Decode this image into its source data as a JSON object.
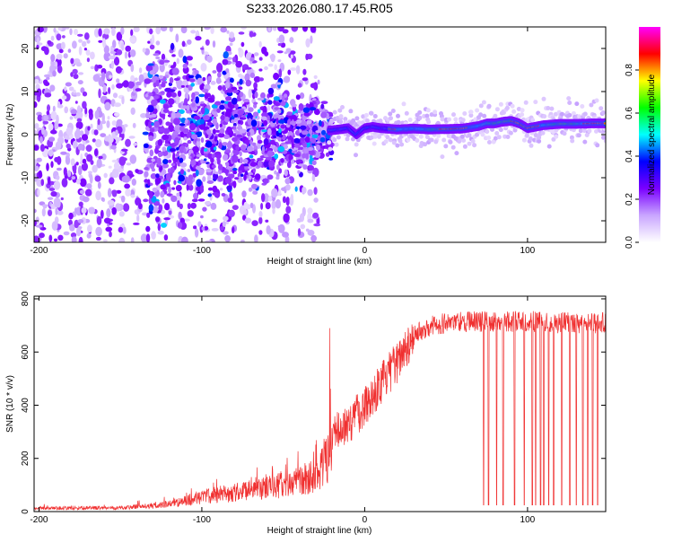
{
  "title": "S233.2026.080.17.45.R05",
  "chart_data": [
    {
      "type": "heatmap",
      "name": "spectrogram",
      "xlabel": "Height of straight line (km)",
      "ylabel": "Frequency (Hz)",
      "xlim": [
        -203,
        148
      ],
      "ylim": [
        -25,
        25
      ],
      "xticks": [
        -200,
        -100,
        0,
        100
      ],
      "xtick_labels": [
        "-200",
        "-100",
        "0",
        "100"
      ],
      "yticks": [
        -20,
        -10,
        0,
        10,
        20
      ],
      "ytick_labels": [
        "-20",
        "-10",
        "0",
        "10",
        "20"
      ],
      "ridge": {
        "description_values": "frequency of peak (Hz) vs height (km)",
        "x": [
          -20,
          -10,
          -5,
          0,
          5,
          10,
          20,
          30,
          40,
          50,
          60,
          70,
          75,
          80,
          85,
          90,
          95,
          100,
          110,
          120,
          130,
          140,
          148
        ],
        "y": [
          1.0,
          1.5,
          0.0,
          1.5,
          1.8,
          1.5,
          1.2,
          1.4,
          1.2,
          1.3,
          1.4,
          2.0,
          2.6,
          2.6,
          3.0,
          3.2,
          2.6,
          1.5,
          2.2,
          2.5,
          2.5,
          2.6,
          2.6
        ]
      },
      "colorbar": {
        "label": "Normalized spectral amplitude",
        "range": [
          0,
          1
        ],
        "ticks": [
          0.0,
          0.2,
          0.4,
          0.6,
          0.8
        ],
        "tick_labels": [
          "0.0",
          "0.2",
          "0.4",
          "0.6",
          "0.8"
        ],
        "colors": [
          "#ffffff",
          "#c9a6ff",
          "#7a00ff",
          "#0000ff",
          "#00ffff",
          "#00ff00",
          "#ffff00",
          "#ff0000",
          "#ff00ff"
        ]
      }
    },
    {
      "type": "line",
      "name": "snr",
      "xlabel": "Height of straight line (km)",
      "ylabel": "SNR (10 * v/v)",
      "xlim": [
        -203,
        148
      ],
      "ylim": [
        0,
        810
      ],
      "xticks": [
        -200,
        -100,
        0,
        100
      ],
      "xtick_labels": [
        "-200",
        "-100",
        "0",
        "100"
      ],
      "yticks": [
        0,
        200,
        400,
        600,
        800
      ],
      "ytick_labels": [
        "0",
        "200",
        "400",
        "600",
        "800"
      ],
      "color": "#f03030",
      "envelope": {
        "x": [
          -203,
          -150,
          -125,
          -110,
          -100,
          -80,
          -60,
          -40,
          -30,
          -22,
          -18,
          -10,
          0,
          10,
          20,
          25,
          30,
          40,
          50,
          60,
          80,
          100,
          120,
          148
        ],
        "y": [
          15,
          18,
          30,
          50,
          70,
          90,
          110,
          140,
          180,
          260,
          300,
          330,
          400,
          480,
          560,
          620,
          660,
          700,
          710,
          715,
          715,
          715,
          710,
          710
        ]
      },
      "dropouts_x": [
        73,
        76,
        81,
        85,
        92,
        98,
        103,
        105,
        108,
        110,
        113,
        116,
        121,
        126,
        130,
        134,
        137,
        140,
        143
      ],
      "dropout_level": 25
    }
  ]
}
